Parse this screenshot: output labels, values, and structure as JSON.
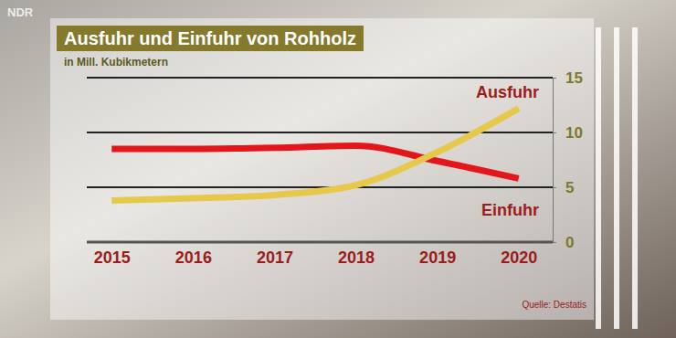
{
  "watermark": "NDR",
  "chart_data": {
    "type": "line",
    "title": "Ausfuhr und Einfuhr von Rohholz",
    "subtitle": "in Mill. Kubikmetern",
    "source": "Quelle: Destatis",
    "categories": [
      "2015",
      "2016",
      "2017",
      "2018",
      "2019",
      "2020"
    ],
    "series": [
      {
        "name": "Ausfuhr",
        "color": "#e3161b",
        "values": [
          8.5,
          8.5,
          8.6,
          8.8,
          7.4,
          5.8
        ]
      },
      {
        "name": "Einfuhr",
        "color": "#e6c84a",
        "values": [
          3.8,
          4.0,
          4.3,
          5.2,
          8.2,
          12.2
        ]
      }
    ],
    "ylim": [
      0,
      15
    ],
    "yticks": [
      0,
      5,
      10,
      15
    ],
    "grid": true
  }
}
